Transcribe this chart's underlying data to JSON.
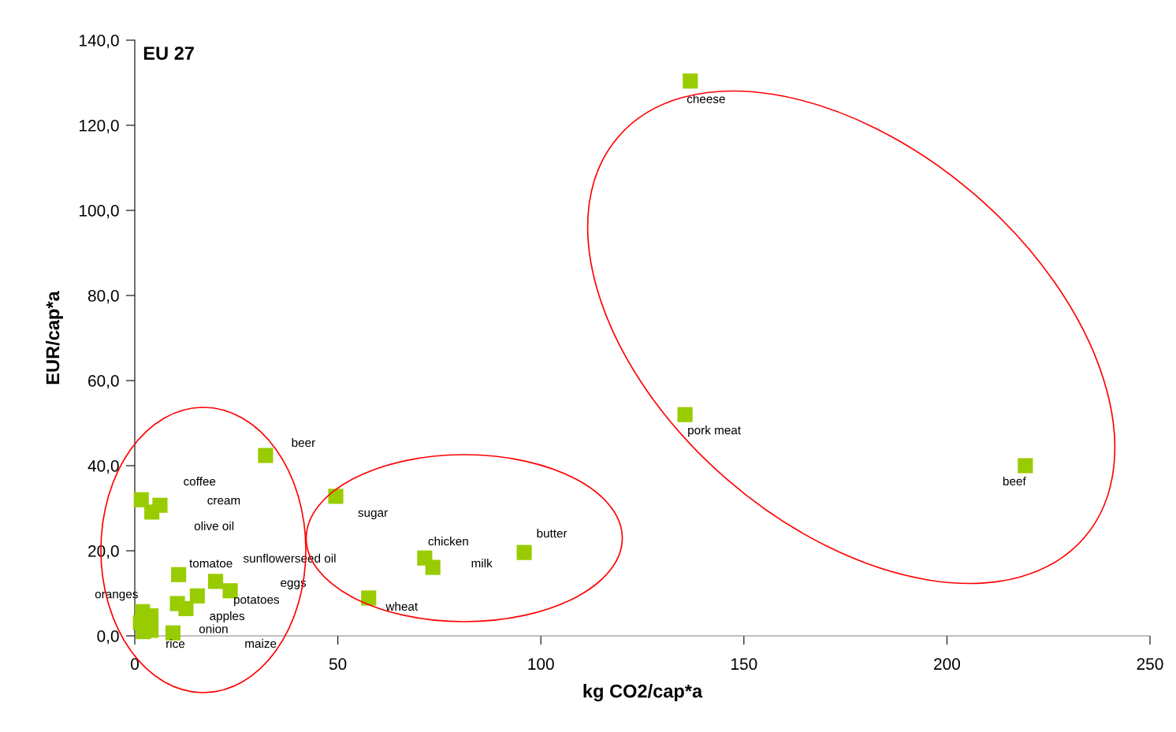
{
  "chart_data": {
    "type": "scatter",
    "title": "EU 27",
    "xlabel": "kg CO2/cap*a",
    "ylabel": "EUR/cap*a",
    "series": [
      {
        "color": "#99cc00",
        "x": [
          136.8,
          135.5,
          219.3,
          95.9,
          71.4,
          73.4,
          49.5,
          57.6,
          32.2,
          1.6,
          6.2,
          4.2,
          10.8,
          19.9,
          23.5,
          15.4,
          10.5,
          12.6,
          9.4,
          1.9,
          4.0,
          1.4,
          2.1,
          4.0
        ],
        "values": [
          130.4,
          52.0,
          40.0,
          19.6,
          18.3,
          16.1,
          32.8,
          8.9,
          42.4,
          32.0,
          30.7,
          29.1,
          14.4,
          12.8,
          10.6,
          9.4,
          7.6,
          6.4,
          0.7,
          5.7,
          4.7,
          3.1,
          1.0,
          1.3
        ]
      }
    ],
    "marker": "square",
    "xlim": [
      0,
      250
    ],
    "xticks": [
      0,
      50,
      100,
      150,
      200,
      250
    ],
    "ylim": [
      0,
      140
    ],
    "yticks": [
      {
        "value": 0,
        "label": "0,0"
      },
      {
        "value": 20,
        "label": "20,0"
      },
      {
        "value": 40,
        "label": "40,0"
      },
      {
        "value": 60,
        "label": "60,0"
      },
      {
        "value": 80,
        "label": "80,0"
      },
      {
        "value": 100,
        "label": "100,0"
      },
      {
        "value": 120,
        "label": "120,0"
      },
      {
        "value": 140,
        "label": "140,0"
      }
    ],
    "grid": false,
    "legend": false,
    "annotations": [
      "cheese",
      "pork meat",
      "beef",
      "butter",
      "chicken",
      "milk",
      "sugar",
      "wheat",
      "beer",
      "coffee",
      "cream",
      "olive oil",
      "tomatoe",
      "sunflowerseed oil",
      "eggs",
      "potatoes",
      "apples",
      "onion",
      "rice",
      "oranges",
      "maize"
    ]
  }
}
